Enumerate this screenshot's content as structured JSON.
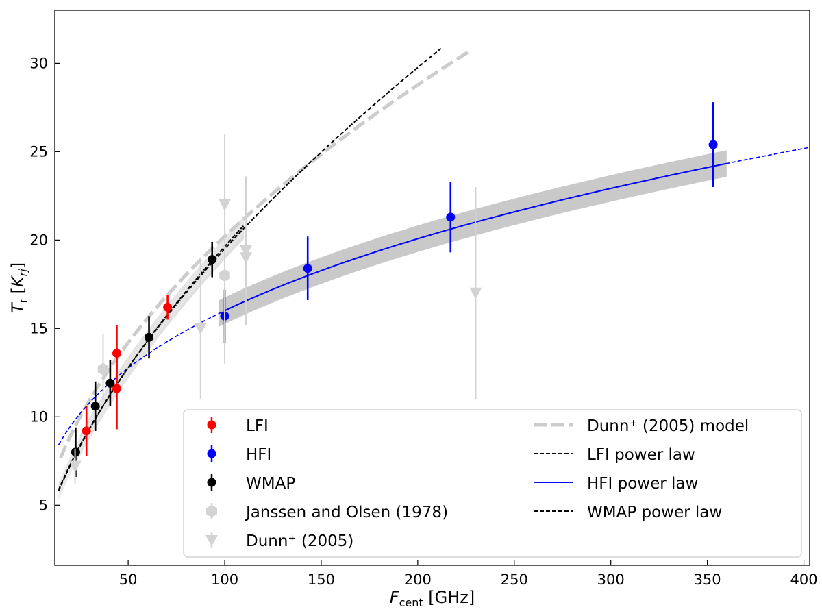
{
  "chart_data": {
    "type": "scatter",
    "xlabel": {
      "main": "F",
      "sub": "cent",
      "unit": "[GHz]"
    },
    "ylabel": {
      "main": "T",
      "sub": "r",
      "unit_main": "K",
      "unit_sub": "rj"
    },
    "xlim": [
      12,
      403
    ],
    "ylim": [
      1.6,
      33.0
    ],
    "xticks": [
      50,
      100,
      150,
      200,
      250,
      300,
      350,
      400
    ],
    "yticks": [
      5,
      10,
      15,
      20,
      25,
      30
    ],
    "legend_location": "lower-right",
    "series": [
      {
        "name": "LFI",
        "kind": "points",
        "color": "#ff0000",
        "points": [
          {
            "x": 28.4,
            "y": 9.2,
            "ylo": 7.8,
            "yhi": 10.6
          },
          {
            "x": 44.1,
            "y": 13.6,
            "ylo": 12.1,
            "yhi": 15.2
          },
          {
            "x": 44.1,
            "y": 11.6,
            "ylo": 9.3,
            "yhi": 13.9
          },
          {
            "x": 70.4,
            "y": 16.2,
            "ylo": 15.5,
            "yhi": 16.9
          }
        ]
      },
      {
        "name": "HFI",
        "kind": "points",
        "color": "#0000ff",
        "points": [
          {
            "x": 100,
            "y": 15.7,
            "ylo": 14.2,
            "yhi": 17.2
          },
          {
            "x": 143,
            "y": 18.4,
            "ylo": 16.6,
            "yhi": 20.2
          },
          {
            "x": 217,
            "y": 21.3,
            "ylo": 19.3,
            "yhi": 23.3
          },
          {
            "x": 353,
            "y": 25.4,
            "ylo": 23.0,
            "yhi": 27.8
          }
        ]
      },
      {
        "name": "WMAP",
        "kind": "points",
        "color": "#000000",
        "points": [
          {
            "x": 22.8,
            "y": 8.0,
            "ylo": 6.6,
            "yhi": 9.4
          },
          {
            "x": 33.0,
            "y": 10.6,
            "ylo": 9.2,
            "yhi": 12.0
          },
          {
            "x": 40.7,
            "y": 11.9,
            "ylo": 10.6,
            "yhi": 13.2
          },
          {
            "x": 60.8,
            "y": 14.5,
            "ylo": 13.3,
            "yhi": 15.7
          },
          {
            "x": 93.5,
            "y": 18.9,
            "ylo": 17.9,
            "yhi": 19.9
          }
        ]
      },
      {
        "name": "Janssen and Olsen (1978)",
        "kind": "hexagons",
        "color": "#d3d3d3",
        "points": [
          {
            "x": 37,
            "y": 12.7,
            "ylo": 10.8,
            "yhi": 14.7
          },
          {
            "x": 100,
            "y": 18.0,
            "ylo": 13.0,
            "yhi": 23.0
          }
        ]
      },
      {
        "name": "Dunn⁺ (2005)",
        "kind": "triangles",
        "color": "#d3d3d3",
        "points": [
          {
            "x": 22.5,
            "y": 7.2,
            "ylo": 6.2,
            "yhi": 8.2
          },
          {
            "x": 87.5,
            "y": 15.0,
            "ylo": 11.0,
            "yhi": 19.0
          },
          {
            "x": 100,
            "y": 22.0,
            "ylo": 18.0,
            "yhi": 26.0
          },
          {
            "x": 111,
            "y": 19.4,
            "ylo": 15.2,
            "yhi": 23.6
          },
          {
            "x": 111,
            "y": 19.0,
            "ylo": 15.2,
            "yhi": 23.6
          },
          {
            "x": 230,
            "y": 17.0,
            "ylo": 11.0,
            "yhi": 23.0
          }
        ]
      },
      {
        "name": "Dunn⁺ (2005) model",
        "kind": "line",
        "color": "#cccccc",
        "dash": "long-dash",
        "formula": {
          "amp": 1.93,
          "index": 0.51
        },
        "x_range": [
          15,
          227
        ]
      },
      {
        "name": "LFI power law",
        "kind": "line",
        "color": "#000000",
        "dash": "short-dash",
        "formula": {
          "amp": 1.175,
          "index": 0.61
        },
        "x_range": [
          14,
          212
        ],
        "band": {
          "x_range": [
            25,
            110
          ],
          "width": 0.6,
          "color": "#d9d9d9"
        }
      },
      {
        "name": "HFI power law",
        "kind": "line",
        "color": "#0000ff",
        "dash": "solid",
        "formula": {
          "amp": 3.55,
          "index": 0.327
        },
        "x_range": [
          100,
          360
        ],
        "extension": {
          "x_range": [
            14,
            403
          ],
          "dash": "short-dash"
        },
        "band": {
          "x_range": [
            97,
            360
          ],
          "width": 0.75,
          "color": "#c0c0c0"
        }
      },
      {
        "name": "WMAP power law",
        "kind": "line",
        "color": "#000000",
        "dash": "short-dash",
        "formula": {
          "amp": 1.13,
          "index": 0.62
        },
        "x_range": [
          14,
          110
        ],
        "band": {
          "x_range": [
            14,
            110
          ],
          "width": 0.5,
          "color": "#e6e6e6"
        }
      }
    ]
  }
}
